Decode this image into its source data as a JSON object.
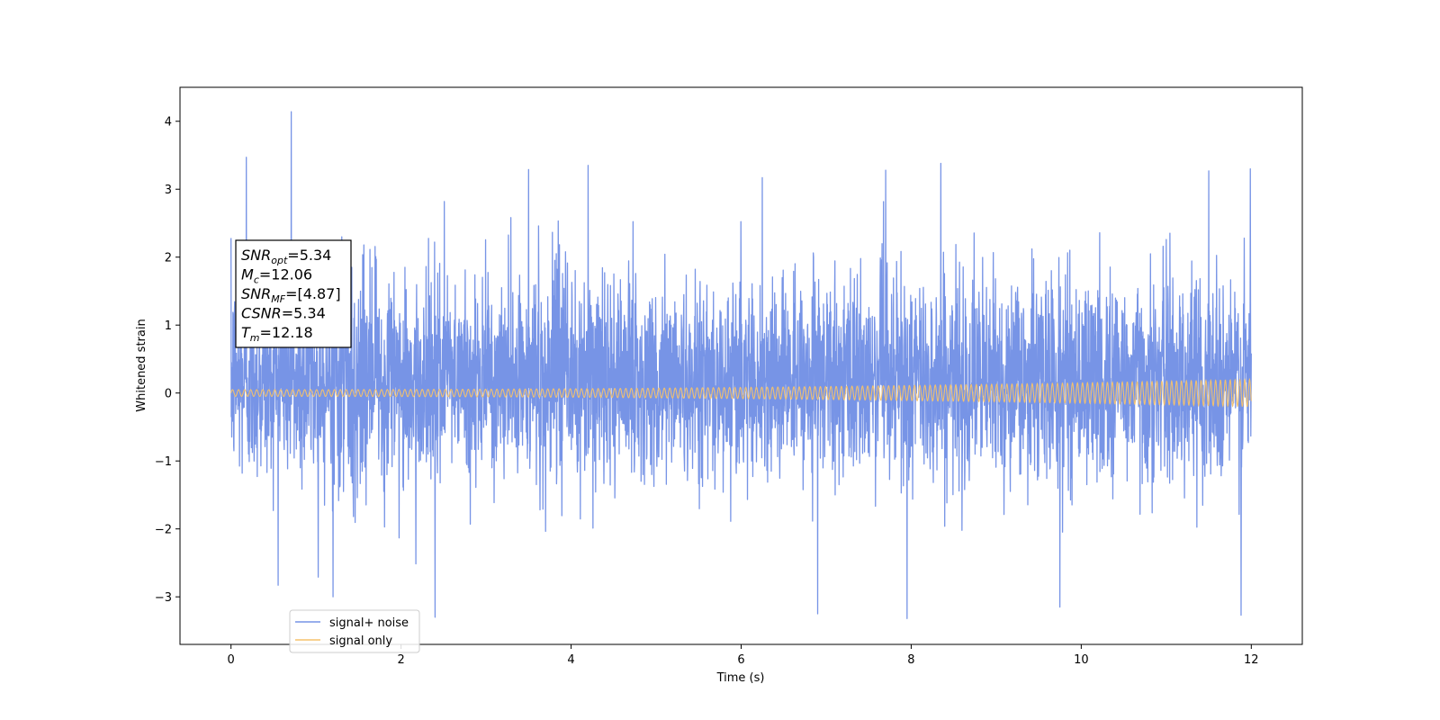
{
  "chart_data": {
    "type": "line",
    "xlabel": "Time (s)",
    "ylabel": "Whitened strain",
    "xlim": [
      -0.6,
      12.6
    ],
    "ylim": [
      -3.7,
      4.5
    ],
    "x_ticks": [
      "0",
      "2",
      "4",
      "6",
      "8",
      "10",
      "12"
    ],
    "x_tick_values": [
      0,
      2,
      4,
      6,
      8,
      10,
      12
    ],
    "y_ticks": [
      "−3",
      "−2",
      "−1",
      "0",
      "1",
      "2",
      "3",
      "4"
    ],
    "y_tick_values": [
      -3,
      -2,
      -1,
      0,
      1,
      2,
      3,
      4
    ],
    "grid": false,
    "legend_position": "lower-left",
    "series": [
      {
        "name": "signal+ noise",
        "color": "#7794e6",
        "x_range": [
          0,
          12
        ],
        "description_values": {
          "typical_upper_envelope": 2.3,
          "typical_lower_envelope": -1.9,
          "peaks": [
            {
              "x": 0.18,
              "y": 3.47
            },
            {
              "x": 0.71,
              "y": 4.14
            },
            {
              "x": 3.5,
              "y": 3.29
            },
            {
              "x": 4.2,
              "y": 3.35
            },
            {
              "x": 6.25,
              "y": 3.17
            },
            {
              "x": 7.7,
              "y": 3.28
            },
            {
              "x": 8.35,
              "y": 3.38
            },
            {
              "x": 11.5,
              "y": 3.27
            },
            {
              "x": 11.99,
              "y": 3.3
            },
            {
              "x": 2.4,
              "y": -3.3
            },
            {
              "x": 7.95,
              "y": -3.32
            },
            {
              "x": 9.75,
              "y": -3.15
            },
            {
              "x": 11.88,
              "y": -3.27
            },
            {
              "x": 1.2,
              "y": -3.0
            },
            {
              "x": 6.9,
              "y": -3.25
            }
          ]
        }
      },
      {
        "name": "signal only",
        "color": "#f5c26b",
        "x_range": [
          0,
          12
        ],
        "description_values": {
          "start_amplitude": 0.05,
          "end_amplitude": 0.2
        }
      }
    ],
    "annotation": {
      "lines": [
        {
          "base": "SNR",
          "sub": "opt",
          "rest": "=5.34"
        },
        {
          "base": "M",
          "sub": "c",
          "rest": "=12.06"
        },
        {
          "base": "SNR",
          "sub": "MF",
          "rest": "=[4.87]"
        },
        {
          "base": "CSNR",
          "sub": "",
          "rest": "=5.34"
        },
        {
          "base": "T",
          "sub": "m",
          "rest": "=12.18"
        }
      ]
    }
  }
}
